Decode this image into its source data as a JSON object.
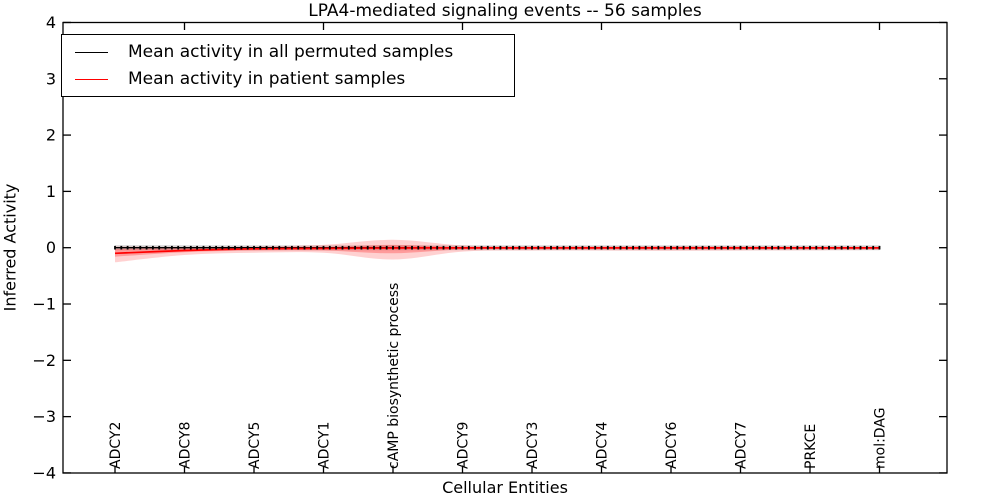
{
  "chart_data": {
    "type": "line",
    "title": "LPA4-mediated signaling events -- 56 samples",
    "xlabel": "Cellular Entities",
    "ylabel": "Inferred Activity",
    "ylim": [
      -4,
      4
    ],
    "yticks": [
      4,
      3,
      2,
      1,
      0,
      -1,
      -2,
      -3,
      -4
    ],
    "grid": false,
    "legend_position": "upper left",
    "x_tick_rotation": 90,
    "categories": [
      "ADCY2",
      "ADCY8",
      "ADCY5",
      "ADCY1",
      "cAMP biosynthetic process",
      "ADCY9",
      "ADCY3",
      "ADCY4",
      "ADCY6",
      "ADCY7",
      "PRKCE",
      "mol:DAG"
    ],
    "top_tick_category_indices": [
      1,
      3,
      5,
      7,
      9,
      11
    ],
    "marker_dash_count": 122,
    "series": [
      {
        "name": "Mean activity in all permuted samples",
        "color": "#000000",
        "style": "line-with-dense-dash-markers",
        "values": [
          0,
          0,
          0,
          0,
          0,
          0,
          0,
          0,
          0,
          0,
          0,
          0
        ],
        "band": {
          "color": "#828282",
          "opacity": 0.3,
          "upper": [
            0.045,
            0.045,
            0.045,
            0.045,
            0.045,
            0.045,
            0.045,
            0.045,
            0.045,
            0.045,
            0.045,
            0.045
          ],
          "lower": [
            -0.045,
            -0.045,
            -0.045,
            -0.045,
            -0.045,
            -0.045,
            -0.045,
            -0.045,
            -0.045,
            -0.045,
            -0.045,
            -0.045
          ]
        }
      },
      {
        "name": "Mean activity in patient samples",
        "color": "#ff0000",
        "style": "line",
        "values": [
          -0.1,
          -0.05,
          -0.02,
          -0.012,
          -0.005,
          -0.004,
          -0.004,
          -0.004,
          -0.004,
          -0.004,
          -0.004,
          -0.004
        ],
        "band_outer": {
          "color": "#ff0000",
          "opacity": 0.18,
          "upper": [
            0.02,
            0.015,
            0.02,
            0.05,
            0.14,
            0.04,
            0.025,
            0.025,
            0.03,
            0.025,
            0.02,
            0.02
          ],
          "lower": [
            -0.26,
            -0.13,
            -0.09,
            -0.09,
            -0.21,
            -0.07,
            -0.05,
            -0.05,
            -0.055,
            -0.05,
            -0.045,
            -0.04
          ]
        },
        "band_inner": {
          "color": "#ff0000",
          "opacity": 0.26,
          "upper": [
            -0.02,
            -0.01,
            0.005,
            0.01,
            0.05,
            0.01,
            0.008,
            0.008,
            0.008,
            0.008,
            0.008,
            0.008
          ],
          "lower": [
            -0.16,
            -0.08,
            -0.05,
            -0.05,
            -0.1,
            -0.03,
            -0.025,
            -0.025,
            -0.025,
            -0.025,
            -0.02,
            -0.02
          ]
        }
      }
    ]
  },
  "legend": {
    "entries": [
      {
        "label": "Mean activity in all permuted samples",
        "color": "#000000"
      },
      {
        "label": "Mean activity in patient samples",
        "color": "#ff0000"
      }
    ]
  }
}
